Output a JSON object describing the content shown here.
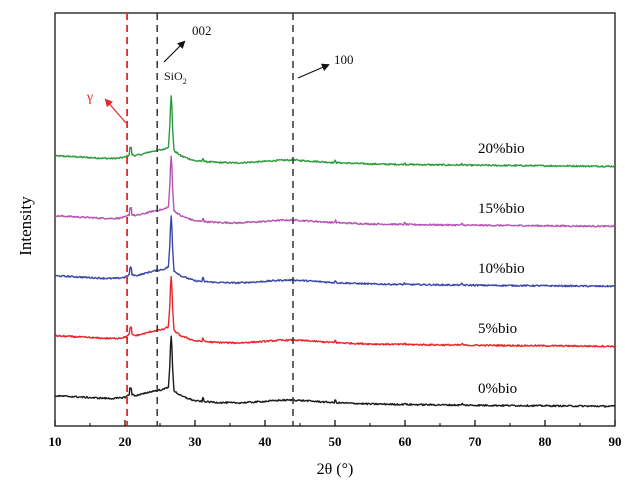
{
  "chart_data": {
    "type": "line",
    "xlabel": "2θ (°)",
    "ylabel": "Intensity",
    "xlim": [
      10,
      90
    ],
    "xticks": [
      10,
      20,
      30,
      40,
      50,
      60,
      70,
      80,
      90
    ],
    "grid": false,
    "colors": {
      "0%bio": "#1a1a1a",
      "5%bio": "#e8262a",
      "10%bio": "#3b47a6",
      "15%bio": "#b554b3",
      "20%bio": "#2d9a3c",
      "gamma_marker": "#e8262a",
      "reference_lines": "#333333"
    },
    "series": [
      {
        "name": "20%bio",
        "offset": 4
      },
      {
        "name": "15%bio",
        "offset": 3
      },
      {
        "name": "10%bio",
        "offset": 2
      },
      {
        "name": "5%bio",
        "offset": 1
      },
      {
        "name": "0%bio",
        "offset": 0
      }
    ],
    "profile": {
      "x": [
        10,
        12,
        14,
        16,
        18,
        19,
        20,
        20.8,
        21.5,
        22.5,
        23.5,
        24.5,
        25.5,
        26.2,
        26.6,
        27,
        28,
        30,
        33,
        36,
        39,
        42,
        44,
        46,
        50,
        55,
        60,
        70,
        80,
        90
      ],
      "y": [
        0.35,
        0.33,
        0.3,
        0.27,
        0.25,
        0.26,
        0.3,
        0.42,
        0.36,
        0.42,
        0.5,
        0.56,
        0.6,
        0.7,
        2.3,
        0.55,
        0.35,
        0.16,
        0.1,
        0.08,
        0.12,
        0.18,
        0.19,
        0.16,
        0.09,
        0.04,
        0.02,
        -0.01,
        -0.03,
        -0.05
      ]
    },
    "annotations": {
      "gamma": {
        "label": "γ",
        "x": 20.3
      },
      "sio2": {
        "label_main": "SiO",
        "label_sub": "2",
        "x": 26.6
      },
      "peak_002": {
        "label": "002",
        "x": 24.6
      },
      "peak_100": {
        "label": "100",
        "x": 44
      }
    }
  }
}
